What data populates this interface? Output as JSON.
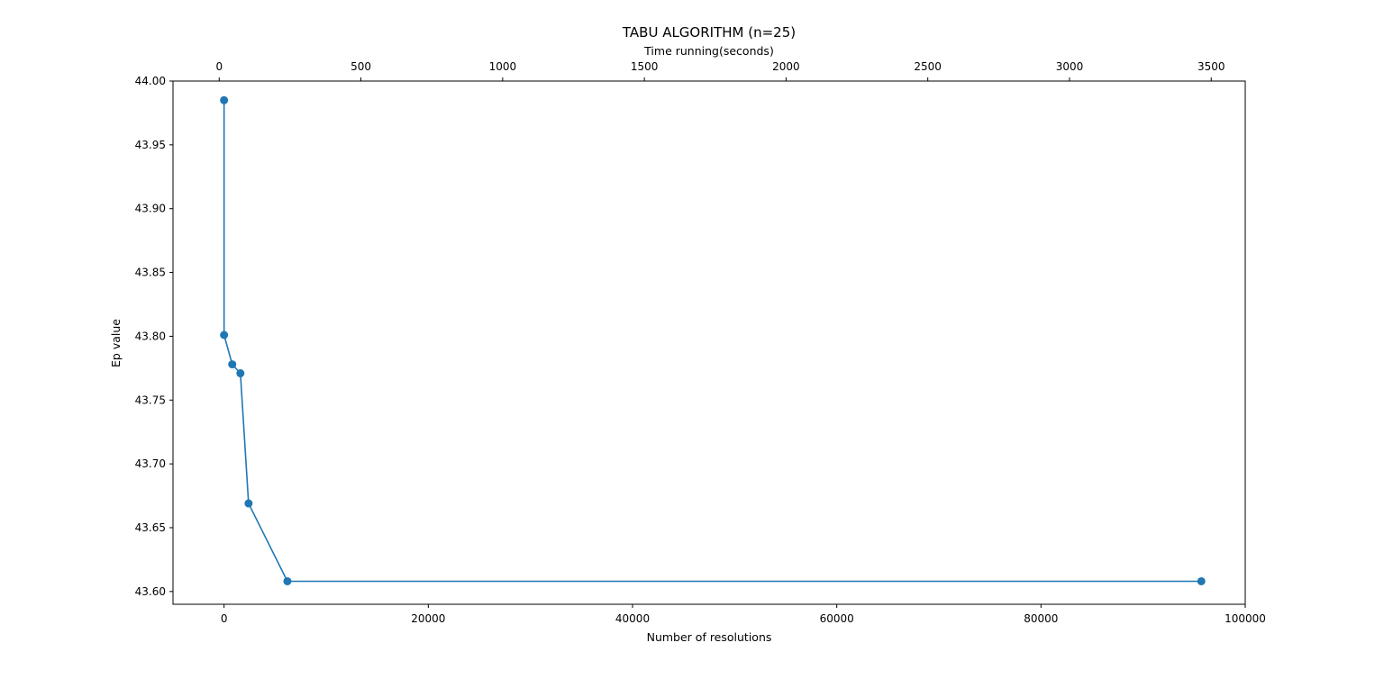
{
  "chart_data": {
    "type": "line",
    "title": "TABU ALGORITHM (n=25)",
    "xlabel": "Number of resolutions",
    "ylabel": "Ep value",
    "secondary_xlabel": "Time running(seconds)",
    "xlim": [
      -5000,
      100000
    ],
    "ylim": [
      43.59,
      44.0
    ],
    "secondary_xlim": [
      -163,
      3620
    ],
    "xticks": [
      0,
      20000,
      40000,
      60000,
      80000,
      100000
    ],
    "xtick_labels": [
      "0",
      "20000",
      "40000",
      "60000",
      "80000",
      "100000"
    ],
    "yticks": [
      43.6,
      43.65,
      43.7,
      43.75,
      43.8,
      43.85,
      43.9,
      43.95,
      44.0
    ],
    "ytick_labels": [
      "43.60",
      "43.65",
      "43.70",
      "43.75",
      "43.80",
      "43.85",
      "43.90",
      "43.95",
      "44.00"
    ],
    "secondary_xticks": [
      0,
      500,
      1000,
      1500,
      2000,
      2500,
      3000,
      3500
    ],
    "secondary_xtick_labels": [
      "0",
      "500",
      "1000",
      "1500",
      "2000",
      "2500",
      "3000",
      "3500"
    ],
    "grid": false,
    "legend": false,
    "series": [
      {
        "color": "#1f77b4",
        "marker": "circle",
        "x": [
          0,
          1,
          800,
          1600,
          2400,
          6200,
          95700
        ],
        "y": [
          43.985,
          43.801,
          43.778,
          43.771,
          43.669,
          43.608,
          43.608
        ]
      }
    ]
  }
}
